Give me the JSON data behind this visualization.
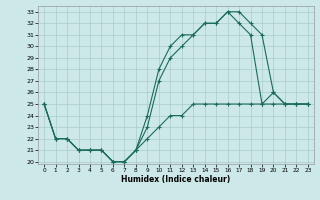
{
  "xlabel": "Humidex (Indice chaleur)",
  "background_color": "#cce8e8",
  "grid_color": "#aacccc",
  "line_color": "#1a6b5a",
  "xlim": [
    -0.5,
    23.5
  ],
  "ylim": [
    19.8,
    33.5
  ],
  "xticks": [
    0,
    1,
    2,
    3,
    4,
    5,
    6,
    7,
    8,
    9,
    10,
    11,
    12,
    13,
    14,
    15,
    16,
    17,
    18,
    19,
    20,
    21,
    22,
    23
  ],
  "yticks": [
    20,
    21,
    22,
    23,
    24,
    25,
    26,
    27,
    28,
    29,
    30,
    31,
    32,
    33
  ],
  "s1x": [
    0,
    1,
    2,
    3,
    4,
    5,
    6,
    7,
    8,
    9,
    10,
    11,
    12,
    13,
    14,
    15,
    16,
    17,
    18,
    19,
    20,
    21,
    22,
    23
  ],
  "s1y": [
    25,
    22,
    22,
    21,
    21,
    21,
    20,
    20,
    21,
    24,
    28,
    30,
    31,
    31,
    32,
    32,
    33,
    33,
    32,
    31,
    26,
    25,
    25,
    25
  ],
  "s2x": [
    0,
    1,
    2,
    3,
    4,
    5,
    6,
    7,
    8,
    9,
    10,
    11,
    12,
    13,
    14,
    15,
    16,
    17,
    18,
    19,
    20,
    21,
    22,
    23
  ],
  "s2y": [
    25,
    22,
    22,
    21,
    21,
    21,
    20,
    20,
    21,
    23,
    27,
    29,
    30,
    31,
    32,
    32,
    33,
    32,
    31,
    25,
    26,
    25,
    25,
    25
  ],
  "s3x": [
    0,
    1,
    2,
    3,
    4,
    5,
    6,
    7,
    8,
    9,
    10,
    11,
    12,
    13,
    14,
    15,
    16,
    17,
    18,
    19,
    20,
    21,
    22,
    23
  ],
  "s3y": [
    25,
    22,
    22,
    21,
    21,
    21,
    20,
    20,
    21,
    22,
    23,
    24,
    24,
    25,
    25,
    25,
    25,
    25,
    25,
    25,
    25,
    25,
    25,
    25
  ]
}
